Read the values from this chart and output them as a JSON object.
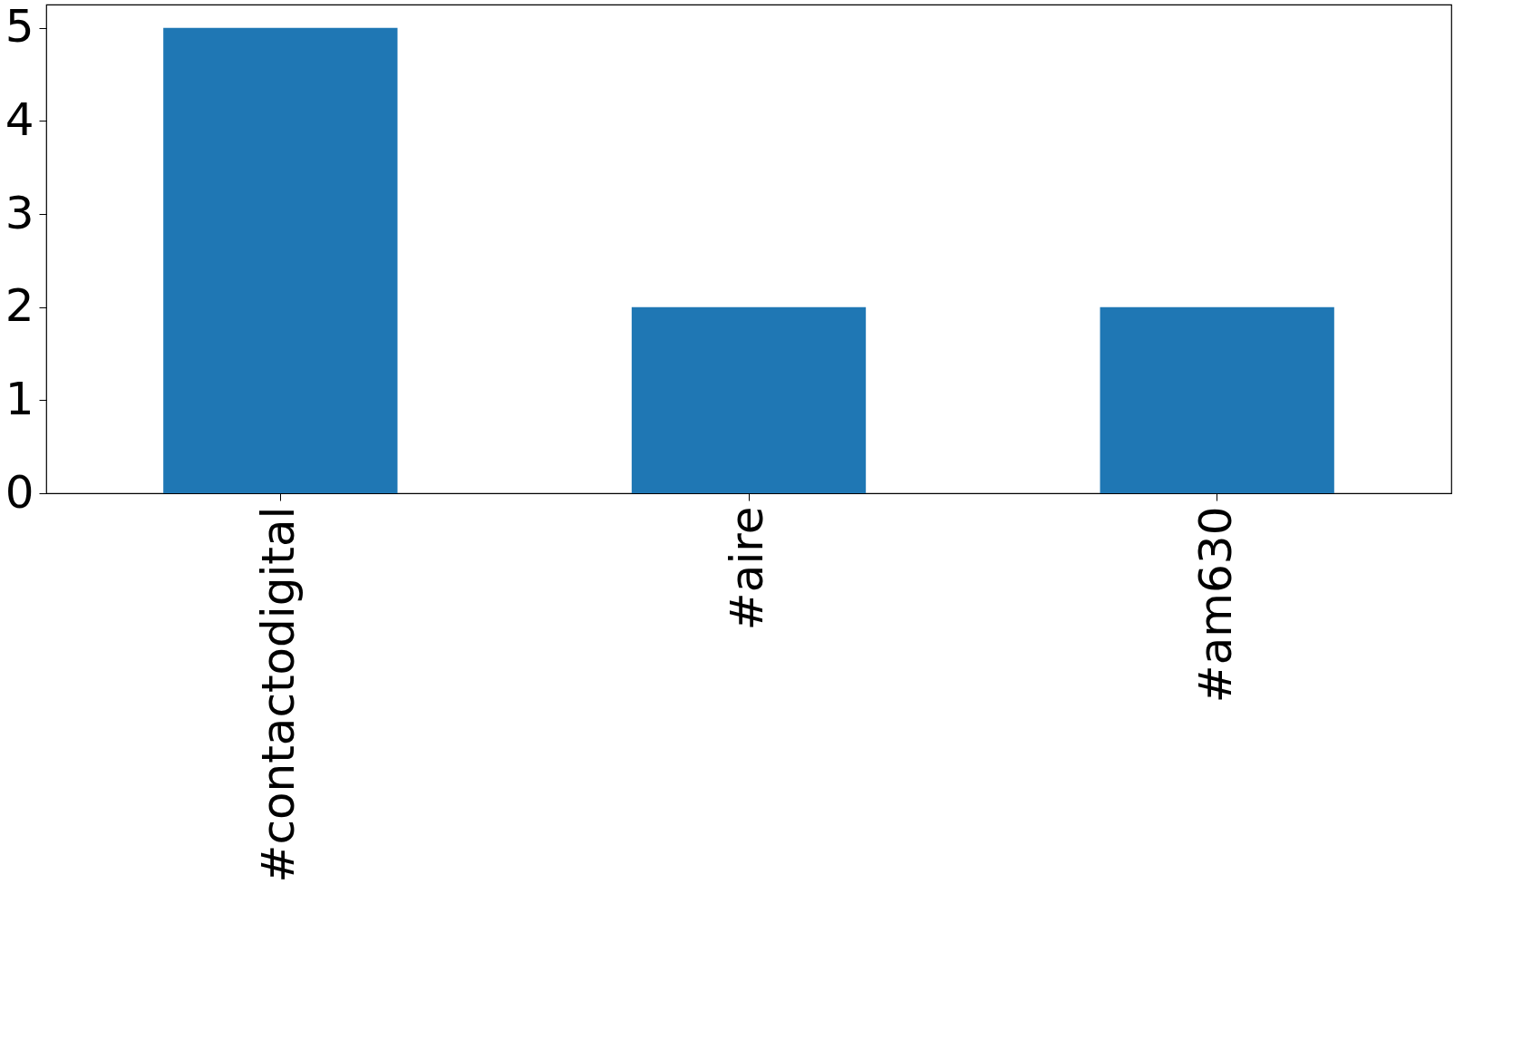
{
  "chart_data": {
    "type": "bar",
    "categories": [
      "#contactodigital",
      "#aire",
      "#am630"
    ],
    "values": [
      5,
      2,
      2
    ],
    "color": "#1f77b4",
    "ylim": [
      0,
      5.25
    ],
    "yticks": [
      0,
      1,
      2,
      3,
      4,
      5
    ],
    "grid": false
  }
}
